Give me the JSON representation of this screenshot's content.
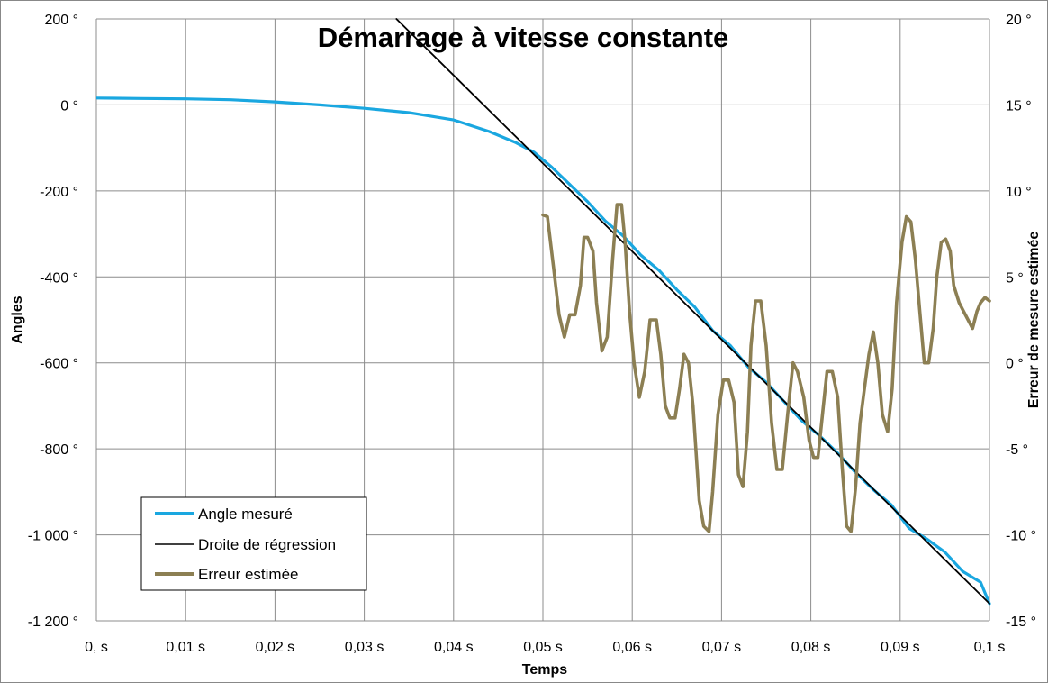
{
  "chart_data": {
    "type": "line",
    "title": "Démarrage à vitesse constante",
    "xlabel": "Temps",
    "ylabel": "Angles",
    "y2label": "Erreur de mesure estimée",
    "xlim": [
      0,
      0.1
    ],
    "ylim": [
      -1200,
      200
    ],
    "y2lim": [
      -15,
      20
    ],
    "grid": true,
    "legend_position": "bottom-left",
    "x_tick_labels": [
      "0, s",
      "0,01 s",
      "0,02 s",
      "0,03 s",
      "0,04 s",
      "0,05 s",
      "0,06 s",
      "0,07 s",
      "0,08 s",
      "0,09 s",
      "0,1 s"
    ],
    "y_tick_labels": [
      "200 °",
      "0 °",
      "-200 °",
      "-400 °",
      "-600 °",
      "-800 °",
      "-1 000 °",
      "-1 200 °"
    ],
    "y2_tick_labels": [
      "20 °",
      "15 °",
      "10 °",
      "5 °",
      "0 °",
      "-5 °",
      "-10 °",
      "-15 °"
    ],
    "series": [
      {
        "name": "Angle mesuré",
        "color": "#1aa7e0",
        "axis": "left",
        "x": [
          0,
          0.005,
          0.01,
          0.015,
          0.02,
          0.025,
          0.03,
          0.035,
          0.04,
          0.044,
          0.047,
          0.049,
          0.051,
          0.053,
          0.055,
          0.057,
          0.059,
          0.061,
          0.063,
          0.065,
          0.067,
          0.069,
          0.071,
          0.073,
          0.075,
          0.077,
          0.079,
          0.081,
          0.083,
          0.085,
          0.087,
          0.089,
          0.091,
          0.093,
          0.095,
          0.097,
          0.099,
          0.1
        ],
        "y": [
          16,
          15,
          14,
          12,
          7,
          0,
          -8,
          -18,
          -35,
          -62,
          -88,
          -110,
          -145,
          -185,
          -225,
          -270,
          -305,
          -350,
          -385,
          -430,
          -470,
          -525,
          -560,
          -610,
          -645,
          -690,
          -735,
          -770,
          -810,
          -855,
          -895,
          -930,
          -985,
          -1010,
          -1040,
          -1085,
          -1110,
          -1160
        ]
      },
      {
        "name": "Droite de régression",
        "color": "#000000",
        "axis": "left",
        "x": [
          0.0336,
          0.1
        ],
        "y": [
          200,
          -1160
        ]
      },
      {
        "name": "Erreur estimée",
        "color": "#8c7f53",
        "axis": "right",
        "x": [
          0.05,
          0.0505,
          0.0512,
          0.0518,
          0.0524,
          0.053,
          0.0536,
          0.0542,
          0.0546,
          0.055,
          0.0556,
          0.056,
          0.0566,
          0.0572,
          0.0578,
          0.0583,
          0.0588,
          0.0592,
          0.0597,
          0.0602,
          0.0608,
          0.0614,
          0.062,
          0.0627,
          0.0632,
          0.0637,
          0.0642,
          0.0648,
          0.0653,
          0.0658,
          0.0663,
          0.0668,
          0.0675,
          0.068,
          0.0686,
          0.069,
          0.0696,
          0.0702,
          0.0708,
          0.0714,
          0.0719,
          0.0724,
          0.0729,
          0.0733,
          0.0738,
          0.0744,
          0.075,
          0.0756,
          0.0762,
          0.0768,
          0.0774,
          0.078,
          0.0785,
          0.0792,
          0.0798,
          0.0803,
          0.0808,
          0.0813,
          0.0818,
          0.0824,
          0.083,
          0.0835,
          0.084,
          0.0845,
          0.085,
          0.0855,
          0.086,
          0.0865,
          0.087,
          0.0875,
          0.088,
          0.0886,
          0.0891,
          0.0896,
          0.0902,
          0.0907,
          0.0912,
          0.0917,
          0.0922,
          0.0927,
          0.0932,
          0.0937,
          0.0941,
          0.0946,
          0.0951,
          0.0956,
          0.096,
          0.0966,
          0.0971,
          0.0976,
          0.0981,
          0.0986,
          0.099,
          0.0995,
          0.1
        ],
        "y": [
          8.6,
          8.5,
          5.5,
          2.8,
          1.5,
          2.8,
          2.8,
          4.5,
          7.3,
          7.3,
          6.5,
          3.5,
          0.7,
          1.5,
          6,
          9.2,
          9.2,
          7,
          3,
          0,
          -2,
          -0.5,
          2.5,
          2.5,
          0.5,
          -2.5,
          -3.2,
          -3.2,
          -1.5,
          0.5,
          0,
          -2.5,
          -8,
          -9.5,
          -9.8,
          -7.5,
          -3,
          -1,
          -1,
          -2.3,
          -6.5,
          -7.2,
          -4,
          1,
          3.6,
          3.6,
          1,
          -3.5,
          -6.2,
          -6.2,
          -3,
          0,
          -0.5,
          -2,
          -4.5,
          -5.5,
          -5.5,
          -3,
          -0.5,
          -0.5,
          -2,
          -6,
          -9.5,
          -9.8,
          -7.3,
          -3.5,
          -1.5,
          0.5,
          1.8,
          0,
          -3,
          -4,
          -1.5,
          3.5,
          7,
          8.5,
          8.2,
          6,
          3,
          0,
          0,
          2,
          5,
          7,
          7.2,
          6.5,
          4.5,
          3.5,
          3,
          2.5,
          2,
          3,
          3.5,
          3.8,
          3.6
        ]
      }
    ]
  },
  "legend": {
    "item1": "Angle mesuré",
    "item2": "Droite de régression",
    "item3": "Erreur estimée"
  }
}
